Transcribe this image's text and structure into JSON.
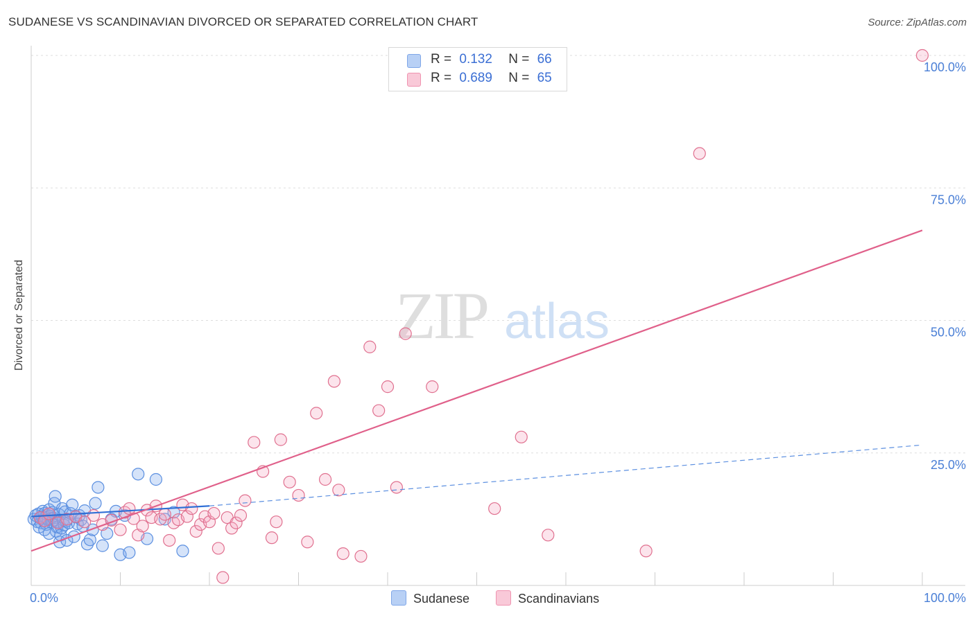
{
  "title": "SUDANESE VS SCANDINAVIAN DIVORCED OR SEPARATED CORRELATION CHART",
  "source": "Source: ZipAtlas.com",
  "watermark": {
    "zip": "ZIP",
    "atlas": "atlas"
  },
  "legend": {
    "rows": [
      {
        "r_label": "R =",
        "r_value": "0.132",
        "n_label": "N =",
        "n_value": "66",
        "color": "#7ea6e8",
        "fill": "#b8d0f5"
      },
      {
        "r_label": "R =",
        "r_value": "0.689",
        "n_label": "N =",
        "n_value": "65",
        "color": "#ef93b0",
        "fill": "#f9c9d8"
      }
    ],
    "bottom": [
      "Sudanese",
      "Scandinavians"
    ]
  },
  "chart_data": {
    "type": "scatter",
    "title": "SUDANESE VS SCANDINAVIAN DIVORCED OR SEPARATED CORRELATION CHART",
    "xlabel": "",
    "ylabel": "Divorced or Separated",
    "xlim": [
      0,
      100
    ],
    "ylim": [
      0,
      100
    ],
    "x_tick_labels": [
      "0.0%",
      "100.0%"
    ],
    "y_tick_labels": [
      "100.0%",
      "75.0%",
      "50.0%",
      "25.0%"
    ],
    "y_ticks": [
      100,
      75,
      50,
      25
    ],
    "grid": true,
    "series": [
      {
        "name": "Sudanese",
        "color": "#5b8fe0",
        "fill": "rgba(120,165,235,0.35)",
        "trend": {
          "x0": 0,
          "y0": 13.0,
          "x1": 20,
          "y1": 15.0,
          "dashed_to": 100,
          "dashed_y": 26.5
        },
        "points": [
          [
            0.3,
            12.5
          ],
          [
            0.5,
            13.2
          ],
          [
            0.7,
            12.0
          ],
          [
            0.8,
            13.5
          ],
          [
            1.0,
            12.8
          ],
          [
            1.1,
            11.8
          ],
          [
            1.2,
            13.0
          ],
          [
            1.3,
            14.0
          ],
          [
            1.4,
            12.2
          ],
          [
            1.5,
            13.6
          ],
          [
            1.6,
            12.9
          ],
          [
            1.7,
            11.5
          ],
          [
            1.8,
            13.3
          ],
          [
            1.9,
            12.4
          ],
          [
            2.0,
            14.3
          ],
          [
            2.1,
            13.1
          ],
          [
            2.2,
            12.6
          ],
          [
            2.3,
            11.9
          ],
          [
            2.4,
            13.8
          ],
          [
            2.5,
            12.7
          ],
          [
            2.6,
            15.5
          ],
          [
            2.7,
            16.8
          ],
          [
            2.8,
            10.2
          ],
          [
            2.9,
            11.0
          ],
          [
            3.0,
            12.0
          ],
          [
            3.1,
            13.4
          ],
          [
            3.2,
            8.2
          ],
          [
            3.3,
            9.5
          ],
          [
            3.4,
            10.8
          ],
          [
            3.5,
            14.5
          ],
          [
            3.6,
            12.3
          ],
          [
            3.7,
            11.4
          ],
          [
            3.8,
            13.9
          ],
          [
            3.9,
            12.1
          ],
          [
            4.0,
            8.5
          ],
          [
            4.2,
            11.8
          ],
          [
            4.4,
            13.6
          ],
          [
            4.6,
            15.2
          ],
          [
            4.8,
            9.2
          ],
          [
            5.0,
            12.9
          ],
          [
            5.2,
            11.6
          ],
          [
            5.4,
            13.2
          ],
          [
            5.6,
            12.4
          ],
          [
            5.8,
            11.2
          ],
          [
            6.0,
            14.1
          ],
          [
            6.3,
            7.8
          ],
          [
            6.6,
            8.6
          ],
          [
            6.9,
            10.5
          ],
          [
            7.2,
            15.5
          ],
          [
            7.5,
            18.5
          ],
          [
            8.0,
            7.5
          ],
          [
            8.5,
            9.8
          ],
          [
            9.0,
            12.5
          ],
          [
            9.5,
            14.0
          ],
          [
            10.0,
            5.8
          ],
          [
            10.5,
            13.2
          ],
          [
            11.0,
            6.2
          ],
          [
            12.0,
            21.0
          ],
          [
            13.0,
            8.8
          ],
          [
            14.0,
            20.0
          ],
          [
            15.0,
            12.5
          ],
          [
            16.0,
            13.8
          ],
          [
            17.0,
            6.5
          ],
          [
            0.9,
            11.0
          ],
          [
            1.5,
            10.5
          ],
          [
            2.0,
            9.8
          ]
        ]
      },
      {
        "name": "Scandinavians",
        "color": "#e0708f",
        "fill": "rgba(245,170,195,0.35)",
        "trend": {
          "x0": 0,
          "y0": 6.5,
          "x1": 100,
          "y1": 67.0
        },
        "points": [
          [
            1.0,
            12.8
          ],
          [
            1.5,
            12.2
          ],
          [
            2.0,
            13.5
          ],
          [
            3.0,
            11.8
          ],
          [
            4.0,
            12.5
          ],
          [
            5.0,
            13.0
          ],
          [
            6.0,
            12.0
          ],
          [
            7.0,
            13.2
          ],
          [
            8.0,
            11.5
          ],
          [
            9.0,
            12.3
          ],
          [
            10.0,
            10.5
          ],
          [
            10.5,
            13.8
          ],
          [
            11.0,
            14.5
          ],
          [
            11.5,
            12.6
          ],
          [
            12.0,
            9.5
          ],
          [
            12.5,
            11.2
          ],
          [
            13.0,
            14.2
          ],
          [
            13.5,
            12.8
          ],
          [
            14.0,
            15.0
          ],
          [
            14.5,
            12.5
          ],
          [
            15.0,
            13.4
          ],
          [
            15.5,
            8.5
          ],
          [
            16.0,
            11.8
          ],
          [
            16.5,
            12.4
          ],
          [
            17.0,
            15.2
          ],
          [
            17.5,
            13.0
          ],
          [
            18.0,
            14.5
          ],
          [
            18.5,
            10.2
          ],
          [
            19.0,
            11.5
          ],
          [
            19.5,
            13.0
          ],
          [
            20.0,
            12.0
          ],
          [
            20.5,
            13.6
          ],
          [
            21.0,
            7.0
          ],
          [
            21.5,
            1.5
          ],
          [
            22.0,
            12.8
          ],
          [
            22.5,
            10.8
          ],
          [
            23.0,
            11.8
          ],
          [
            23.5,
            13.2
          ],
          [
            24.0,
            16.0
          ],
          [
            25.0,
            27.0
          ],
          [
            26.0,
            21.5
          ],
          [
            27.0,
            9.0
          ],
          [
            27.5,
            12.0
          ],
          [
            28.0,
            27.5
          ],
          [
            29.0,
            19.5
          ],
          [
            30.0,
            17.0
          ],
          [
            31.0,
            8.2
          ],
          [
            32.0,
            32.5
          ],
          [
            33.0,
            20.0
          ],
          [
            34.0,
            38.5
          ],
          [
            34.5,
            18.0
          ],
          [
            35.0,
            6.0
          ],
          [
            37.0,
            5.5
          ],
          [
            38.0,
            45.0
          ],
          [
            39.0,
            33.0
          ],
          [
            40.0,
            37.5
          ],
          [
            41.0,
            18.5
          ],
          [
            42.0,
            47.5
          ],
          [
            45.0,
            37.5
          ],
          [
            52.0,
            14.5
          ],
          [
            55.0,
            28.0
          ],
          [
            58.0,
            9.5
          ],
          [
            69.0,
            6.5
          ],
          [
            75.0,
            81.5
          ],
          [
            100.0,
            100.0
          ]
        ]
      }
    ]
  }
}
